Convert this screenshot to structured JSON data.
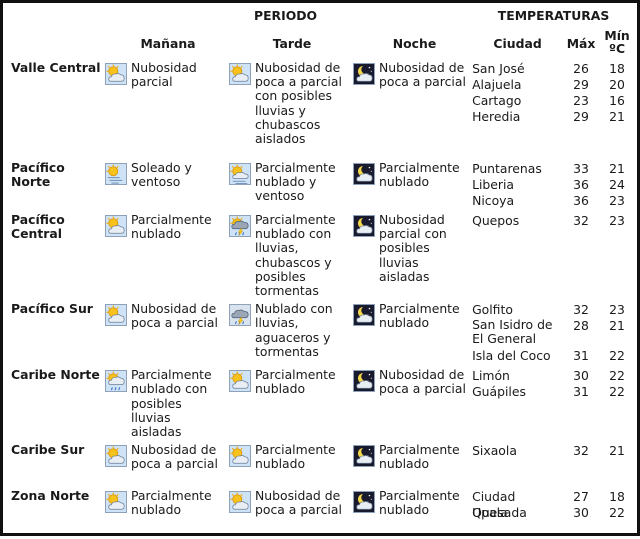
{
  "header": {
    "periodo": "PERIODO",
    "temperaturas": "TEMPERATURAS",
    "manana": "Mañana",
    "tarde": "Tarde",
    "noche": "Noche",
    "ciudad": "Ciudad",
    "max": "Máx",
    "min_line1": "Mín",
    "min_line2": "ºC"
  },
  "rows": [
    {
      "region": "Valle Central",
      "manana": {
        "icon": "sun-cloud-icon",
        "text": "Nubosidad parcial"
      },
      "tarde": {
        "icon": "sun-cloud-icon",
        "text": "Nubosidad de poca a parcial con posibles lluvias y chubascos aislados"
      },
      "noche": {
        "icon": "moon-cloud-icon",
        "text": "Nubosidad de poca a parcial"
      },
      "cities": [
        {
          "name": "San José",
          "max": "26",
          "min": "18"
        },
        {
          "name": "Alajuela",
          "max": "29",
          "min": "20"
        },
        {
          "name": "Cartago",
          "max": "23",
          "min": "16"
        },
        {
          "name": "Heredia",
          "max": "29",
          "min": "21"
        }
      ]
    },
    {
      "region": "Pacífico Norte",
      "manana": {
        "icon": "sun-wind-icon",
        "text": "Soleado y ventoso"
      },
      "tarde": {
        "icon": "sun-cloud-wind-icon",
        "text": "Parcialmente nublado y ventoso"
      },
      "noche": {
        "icon": "moon-cloud-icon",
        "text": "Parcialmente nublado"
      },
      "cities": [
        {
          "name": "Puntarenas",
          "max": "33",
          "min": "21"
        },
        {
          "name": "Liberia",
          "max": "36",
          "min": "24"
        },
        {
          "name": "Nicoya",
          "max": "36",
          "min": "23"
        }
      ]
    },
    {
      "region": "Pacífico Central",
      "manana": {
        "icon": "sun-cloud-icon",
        "text": "Parcialmente nublado"
      },
      "tarde": {
        "icon": "sun-cloud-storm-icon",
        "text": "Parcialmente nublado con lluvias, chubascos y posibles tormentas"
      },
      "noche": {
        "icon": "moon-cloud-icon",
        "text": "Nubosidad parcial con posibles lluvias aisladas"
      },
      "cities": [
        {
          "name": "Quepos",
          "max": "32",
          "min": "23"
        }
      ]
    },
    {
      "region": "Pacífico Sur",
      "manana": {
        "icon": "sun-cloud-icon",
        "text": "Nubosidad de poca a parcial"
      },
      "tarde": {
        "icon": "cloud-rain-storm-icon",
        "text": "Nublado con lluvias, aguaceros y tormentas"
      },
      "noche": {
        "icon": "moon-cloud-icon",
        "text": "Parcialmente nublado"
      },
      "cities": [
        {
          "name": "Golfito",
          "max": "32",
          "min": "23"
        },
        {
          "name": "San Isidro de El General",
          "max": "28",
          "min": "21"
        },
        {
          "name": "Isla del Coco",
          "max": "31",
          "min": "22"
        }
      ]
    },
    {
      "region": "Caribe Norte",
      "manana": {
        "icon": "sun-cloud-rain-icon",
        "text": "Parcialmente nublado con posibles lluvias aisladas"
      },
      "tarde": {
        "icon": "sun-cloud-icon",
        "text": "Parcialmente nublado"
      },
      "noche": {
        "icon": "moon-cloud-icon",
        "text": "Nubosidad de poca a parcial"
      },
      "cities": [
        {
          "name": "Limón",
          "max": "30",
          "min": "22"
        },
        {
          "name": "Guápiles",
          "max": "31",
          "min": "22"
        }
      ]
    },
    {
      "region": "Caribe Sur",
      "manana": {
        "icon": "sun-cloud-icon",
        "text": "Nubosidad de poca a parcial"
      },
      "tarde": {
        "icon": "sun-cloud-icon",
        "text": "Parcialmente nublado"
      },
      "noche": {
        "icon": "moon-cloud-icon",
        "text": "Parcialmente nublado"
      },
      "cities": [
        {
          "name": "Sixaola",
          "max": "32",
          "min": "21"
        }
      ]
    },
    {
      "region": "Zona Norte",
      "manana": {
        "icon": "sun-cloud-icon",
        "text": "Parcialmente nublado"
      },
      "tarde": {
        "icon": "sun-cloud-icon",
        "text": "Nubosidad de poca a parcial"
      },
      "noche": {
        "icon": "moon-cloud-icon",
        "text": "Parcialmente nublado"
      },
      "cities": [
        {
          "name": "Ciudad Quesada",
          "max": "27",
          "min": "18"
        },
        {
          "name": "Upala",
          "max": "30",
          "min": "22"
        }
      ]
    }
  ]
}
